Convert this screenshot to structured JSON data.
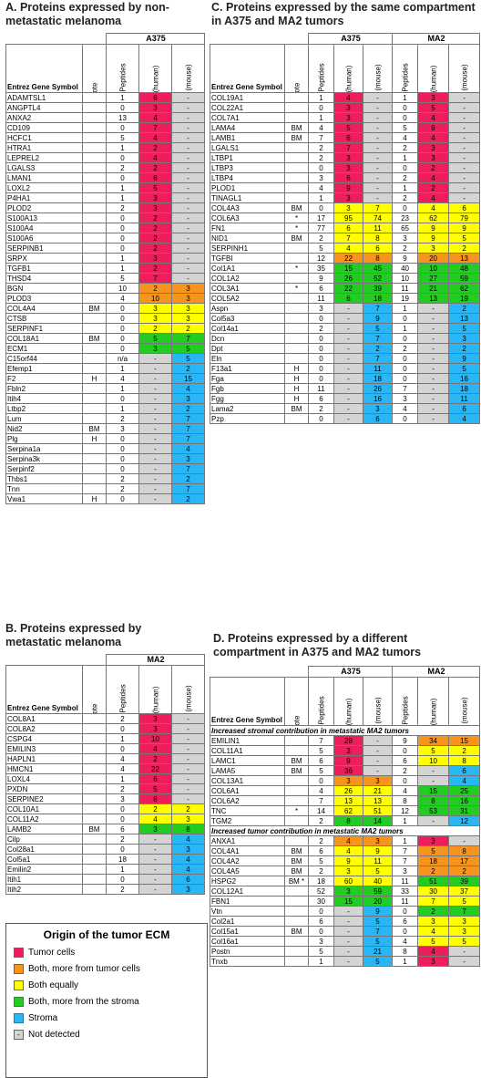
{
  "legend": {
    "title": "Origin of the tumor ECM",
    "items": [
      {
        "key": "r",
        "label": "Tumor cells"
      },
      {
        "key": "o",
        "label": "Both, more from tumor cells"
      },
      {
        "key": "y",
        "label": "Both equally"
      },
      {
        "key": "g",
        "label": "Both, more from the stroma"
      },
      {
        "key": "b",
        "label": "Stroma"
      },
      {
        "key": "n",
        "label": "Not detected",
        "mark": "-"
      }
    ]
  },
  "headers": {
    "gene": "Entrez Gene Symbol",
    "note": "Note",
    "shared": "Shared Peptides",
    "tumor": "Tumor (human)",
    "stroma": "Stroma (mouse)"
  },
  "colors": {
    "r": "#ee1d5b",
    "o": "#f7941d",
    "y": "#ffff00",
    "g": "#22cc22",
    "b": "#29b6f6",
    "n": "#d4d4d4"
  },
  "sectionA": {
    "title": "A. Proteins expressed by non-metastatic melanoma",
    "group": "A375",
    "rows": [
      [
        "ADAMTSL1",
        "",
        "1",
        "6",
        "-",
        "r"
      ],
      [
        "ANGPTL4",
        "",
        "0",
        "3",
        "-",
        "r"
      ],
      [
        "ANXA2",
        "",
        "13",
        "4",
        "-",
        "r"
      ],
      [
        "CD109",
        "",
        "0",
        "7",
        "-",
        "r"
      ],
      [
        "HCFC1",
        "",
        "5",
        "4",
        "-",
        "r"
      ],
      [
        "HTRA1",
        "",
        "1",
        "2",
        "-",
        "r"
      ],
      [
        "LEPREL2",
        "",
        "0",
        "4",
        "-",
        "r"
      ],
      [
        "LGALS3",
        "",
        "2",
        "2",
        "-",
        "r"
      ],
      [
        "LMAN1",
        "",
        "0",
        "6",
        "-",
        "r"
      ],
      [
        "LOXL2",
        "",
        "1",
        "5",
        "-",
        "r"
      ],
      [
        "P4HA1",
        "",
        "1",
        "3",
        "-",
        "r"
      ],
      [
        "PLOD2",
        "",
        "2",
        "3",
        "-",
        "r"
      ],
      [
        "S100A13",
        "",
        "0",
        "2",
        "-",
        "r"
      ],
      [
        "S100A4",
        "",
        "0",
        "2",
        "-",
        "r"
      ],
      [
        "S100A6",
        "",
        "0",
        "2",
        "-",
        "r"
      ],
      [
        "SERPINB1",
        "",
        "0",
        "2",
        "-",
        "r"
      ],
      [
        "SRPX",
        "",
        "1",
        "3",
        "-",
        "r"
      ],
      [
        "TGFB1",
        "",
        "1",
        "2",
        "-",
        "r"
      ],
      [
        "THSD4",
        "",
        "5",
        "7",
        "-",
        "r"
      ],
      [
        "BGN",
        "",
        "10",
        "2",
        "3",
        "o"
      ],
      [
        "PLOD3",
        "",
        "4",
        "10",
        "3",
        "o"
      ],
      [
        "COL4A4",
        "BM",
        "0",
        "3",
        "3",
        "y"
      ],
      [
        "CTSB",
        "",
        "0",
        "3",
        "3",
        "y"
      ],
      [
        "SERPINF1",
        "",
        "0",
        "2",
        "2",
        "y"
      ],
      [
        "COL18A1",
        "BM",
        "0",
        "5",
        "7",
        "g"
      ],
      [
        "ECM1",
        "",
        "0",
        "3",
        "5",
        "g"
      ],
      [
        "C15orf44",
        "",
        "n/a",
        "-",
        "5",
        "b"
      ],
      [
        "Efemp1",
        "",
        "1",
        "-",
        "2",
        "b"
      ],
      [
        "F2",
        "H",
        "4",
        "-",
        "15",
        "b"
      ],
      [
        "Fbln2",
        "",
        "1",
        "-",
        "4",
        "b"
      ],
      [
        "Itih4",
        "",
        "0",
        "-",
        "3",
        "b"
      ],
      [
        "Ltbp2",
        "",
        "1",
        "-",
        "2",
        "b"
      ],
      [
        "Lum",
        "",
        "2",
        "-",
        "7",
        "b"
      ],
      [
        "Nid2",
        "BM",
        "3",
        "-",
        "7",
        "b"
      ],
      [
        "Plg",
        "H",
        "0",
        "-",
        "7",
        "b"
      ],
      [
        "Serpina1a",
        "",
        "0",
        "-",
        "4",
        "b"
      ],
      [
        "Serpina3k",
        "",
        "0",
        "-",
        "3",
        "b"
      ],
      [
        "Serpinf2",
        "",
        "0",
        "-",
        "7",
        "b"
      ],
      [
        "Thbs1",
        "",
        "2",
        "-",
        "2",
        "b"
      ],
      [
        "Tnn",
        "",
        "2",
        "-",
        "7",
        "b"
      ],
      [
        "Vwa1",
        "H",
        "0",
        "-",
        "2",
        "b"
      ]
    ]
  },
  "sectionB": {
    "title": "B. Proteins expressed by metastatic melanoma",
    "group": "MA2",
    "rows": [
      [
        "COL8A1",
        "",
        "2",
        "3",
        "-",
        "r"
      ],
      [
        "COL8A2",
        "",
        "0",
        "3",
        "-",
        "r"
      ],
      [
        "CSPG4",
        "",
        "1",
        "10",
        "-",
        "r"
      ],
      [
        "EMILIN3",
        "",
        "0",
        "4",
        "-",
        "r"
      ],
      [
        "HAPLN1",
        "",
        "4",
        "2",
        "-",
        "r"
      ],
      [
        "HMCN1",
        "",
        "4",
        "22",
        "-",
        "r"
      ],
      [
        "LOXL4",
        "",
        "1",
        "6",
        "-",
        "r"
      ],
      [
        "PXDN",
        "",
        "2",
        "5",
        "-",
        "r"
      ],
      [
        "SERPINE2",
        "",
        "3",
        "6",
        "-",
        "r"
      ],
      [
        "COL10A1",
        "",
        "0",
        "2",
        "2",
        "y"
      ],
      [
        "COL11A2",
        "",
        "0",
        "4",
        "3",
        "y"
      ],
      [
        "LAMB2",
        "BM",
        "6",
        "3",
        "8",
        "g"
      ],
      [
        "Cilp",
        "",
        "2",
        "-",
        "4",
        "b"
      ],
      [
        "Col28a1",
        "",
        "0",
        "-",
        "3",
        "b"
      ],
      [
        "Col5a1",
        "",
        "18",
        "-",
        "4",
        "b"
      ],
      [
        "Emilin2",
        "",
        "1",
        "-",
        "4",
        "b"
      ],
      [
        "Itih1",
        "",
        "0",
        "-",
        "6",
        "b"
      ],
      [
        "Itih2",
        "",
        "2",
        "-",
        "3",
        "b"
      ]
    ]
  },
  "sectionC": {
    "title": "C. Proteins expressed by the same compartment in A375 and MA2 tumors",
    "groups": [
      "A375",
      "MA2"
    ],
    "rows": [
      [
        "COL19A1",
        "",
        "1",
        "4",
        "-",
        "r",
        "1",
        "3",
        "-",
        "r"
      ],
      [
        "COL22A1",
        "",
        "0",
        "3",
        "-",
        "r",
        "0",
        "5",
        "-",
        "r"
      ],
      [
        "COL7A1",
        "",
        "1",
        "3",
        "-",
        "r",
        "0",
        "4",
        "-",
        "r"
      ],
      [
        "LAMA4",
        "BM",
        "4",
        "5",
        "-",
        "r",
        "5",
        "9",
        "-",
        "r"
      ],
      [
        "LAMB1",
        "BM",
        "7",
        "6",
        "-",
        "r",
        "4",
        "4",
        "-",
        "r"
      ],
      [
        "LGALS1",
        "",
        "2",
        "7",
        "-",
        "r",
        "2",
        "3",
        "-",
        "r"
      ],
      [
        "LTBP1",
        "",
        "2",
        "3",
        "-",
        "r",
        "1",
        "3",
        "-",
        "r"
      ],
      [
        "LTBP3",
        "",
        "0",
        "3",
        "-",
        "r",
        "0",
        "2",
        "-",
        "r"
      ],
      [
        "LTBP4",
        "",
        "3",
        "6",
        "-",
        "r",
        "2",
        "4",
        "-",
        "r"
      ],
      [
        "PLOD1",
        "",
        "4",
        "9",
        "-",
        "r",
        "1",
        "2",
        "-",
        "r"
      ],
      [
        "TINAGL1",
        "",
        "1",
        "3",
        "-",
        "r",
        "2",
        "4",
        "-",
        "r"
      ],
      [
        "COL4A3",
        "BM",
        "0",
        "3",
        "7",
        "y",
        "0",
        "4",
        "6",
        "y"
      ],
      [
        "COL6A3",
        "*",
        "17",
        "95",
        "74",
        "y",
        "23",
        "62",
        "79",
        "y"
      ],
      [
        "FN1",
        "*",
        "77",
        "6",
        "11",
        "y",
        "65",
        "9",
        "9",
        "y"
      ],
      [
        "NID1",
        "BM",
        "2",
        "7",
        "8",
        "y",
        "3",
        "9",
        "5",
        "y"
      ],
      [
        "SERPINH1",
        "",
        "5",
        "4",
        "6",
        "y",
        "2",
        "3",
        "2",
        "y"
      ],
      [
        "TGFBI",
        "",
        "12",
        "22",
        "8",
        "o",
        "9",
        "20",
        "13",
        "o"
      ],
      [
        "Col1A1",
        "*",
        "35",
        "15",
        "45",
        "g",
        "40",
        "10",
        "48",
        "g"
      ],
      [
        "COL1A2",
        "",
        "9",
        "26",
        "52",
        "g",
        "10",
        "27",
        "59",
        "g"
      ],
      [
        "COL3A1",
        "*",
        "6",
        "22",
        "39",
        "g",
        "11",
        "21",
        "62",
        "g"
      ],
      [
        "COL5A2",
        "",
        "11",
        "6",
        "18",
        "g",
        "19",
        "13",
        "19",
        "g"
      ],
      [
        "Aspn",
        "",
        "3",
        "-",
        "7",
        "b",
        "1",
        "-",
        "2",
        "b"
      ],
      [
        "Col5a3",
        "",
        "0",
        "-",
        "9",
        "b",
        "0",
        "-",
        "13",
        "b"
      ],
      [
        "Col14a1",
        "",
        "2",
        "-",
        "5",
        "b",
        "1",
        "-",
        "5",
        "b"
      ],
      [
        "Dcn",
        "",
        "0",
        "-",
        "7",
        "b",
        "0",
        "-",
        "3",
        "b"
      ],
      [
        "Dpt",
        "",
        "0",
        "-",
        "2",
        "b",
        "2",
        "-",
        "2",
        "b"
      ],
      [
        "Eln",
        "",
        "0",
        "-",
        "7",
        "b",
        "0",
        "-",
        "9",
        "b"
      ],
      [
        "F13a1",
        "H",
        "0",
        "-",
        "11",
        "b",
        "0",
        "-",
        "5",
        "b"
      ],
      [
        "Fga",
        "H",
        "0",
        "-",
        "18",
        "b",
        "0",
        "-",
        "16",
        "b"
      ],
      [
        "Fgb",
        "H",
        "11",
        "-",
        "26",
        "b",
        "7",
        "-",
        "18",
        "b"
      ],
      [
        "Fgg",
        "H",
        "6",
        "-",
        "16",
        "b",
        "3",
        "-",
        "11",
        "b"
      ],
      [
        "Lama2",
        "BM",
        "2",
        "-",
        "3",
        "b",
        "4",
        "-",
        "6",
        "b"
      ],
      [
        "Pzp",
        "",
        "0",
        "-",
        "6",
        "b",
        "0",
        "-",
        "4",
        "b"
      ]
    ]
  },
  "sectionD": {
    "title": "D. Proteins expressed by a different compartment in A375 and MA2 tumors",
    "groups": [
      "A375",
      "MA2"
    ],
    "subheads": [
      "Increased stromal contribution in metastatic MA2 tumors",
      "Increased tumor contribution in metastatic MA2 tumors"
    ],
    "rows1": [
      [
        "EMILIN1",
        "",
        "7",
        "28",
        "-",
        "r",
        "9",
        "34",
        "15",
        "o"
      ],
      [
        "COL11A1",
        "",
        "5",
        "3",
        "-",
        "r",
        "0",
        "5",
        "2",
        "y"
      ],
      [
        "LAMC1",
        "BM",
        "6",
        "9",
        "-",
        "r",
        "6",
        "10",
        "8",
        "y"
      ],
      [
        "LAMA5",
        "BM",
        "5",
        "36",
        "-",
        "r",
        "2",
        "-",
        "6",
        "b"
      ],
      [
        "COL13A1",
        "",
        "0",
        "3",
        "3",
        "o",
        "0",
        "-",
        "4",
        "b"
      ],
      [
        "COL6A1",
        "",
        "4",
        "26",
        "21",
        "y",
        "4",
        "15",
        "25",
        "g"
      ],
      [
        "COL6A2",
        "",
        "7",
        "13",
        "13",
        "y",
        "8",
        "8",
        "16",
        "g"
      ],
      [
        "TNC",
        "*",
        "14",
        "62",
        "51",
        "y",
        "12",
        "53",
        "31",
        "g"
      ],
      [
        "TGM2",
        "",
        "2",
        "8",
        "14",
        "g",
        "1",
        "-",
        "12",
        "b"
      ]
    ],
    "rows2": [
      [
        "ANXA1",
        "",
        "2",
        "4",
        "3",
        "o",
        "1",
        "3",
        "-",
        "r"
      ],
      [
        "COL4A1",
        "BM",
        "6",
        "4",
        "9",
        "y",
        "7",
        "5",
        "8",
        "o"
      ],
      [
        "COL4A2",
        "BM",
        "5",
        "9",
        "11",
        "y",
        "7",
        "18",
        "17",
        "o"
      ],
      [
        "COL4A5",
        "BM",
        "2",
        "3",
        "5",
        "y",
        "3",
        "2",
        "2",
        "o"
      ],
      [
        "HSPG2",
        "BM *",
        "18",
        "60",
        "40",
        "y",
        "11",
        "51",
        "39",
        "g"
      ],
      [
        "COL12A1",
        "",
        "52",
        "3",
        "59",
        "g",
        "33",
        "30",
        "37",
        "y"
      ],
      [
        "FBN1",
        "",
        "30",
        "15",
        "20",
        "g",
        "11",
        "7",
        "5",
        "y"
      ],
      [
        "Vtn",
        "",
        "0",
        "-",
        "9",
        "b",
        "0",
        "2",
        "7",
        "g"
      ],
      [
        "Col2a1",
        "",
        "6",
        "-",
        "5",
        "b",
        "6",
        "3",
        "3",
        "y"
      ],
      [
        "Col15a1",
        "BM",
        "0",
        "-",
        "7",
        "b",
        "0",
        "4",
        "3",
        "y"
      ],
      [
        "Col16a1",
        "",
        "3",
        "-",
        "5",
        "b",
        "4",
        "5",
        "5",
        "y"
      ],
      [
        "Postn",
        "",
        "5",
        "-",
        "21",
        "b",
        "8",
        "4",
        "-",
        "r"
      ],
      [
        "Tnxb",
        "",
        "1",
        "-",
        "5",
        "b",
        "1",
        "3",
        "-",
        "r"
      ]
    ]
  }
}
